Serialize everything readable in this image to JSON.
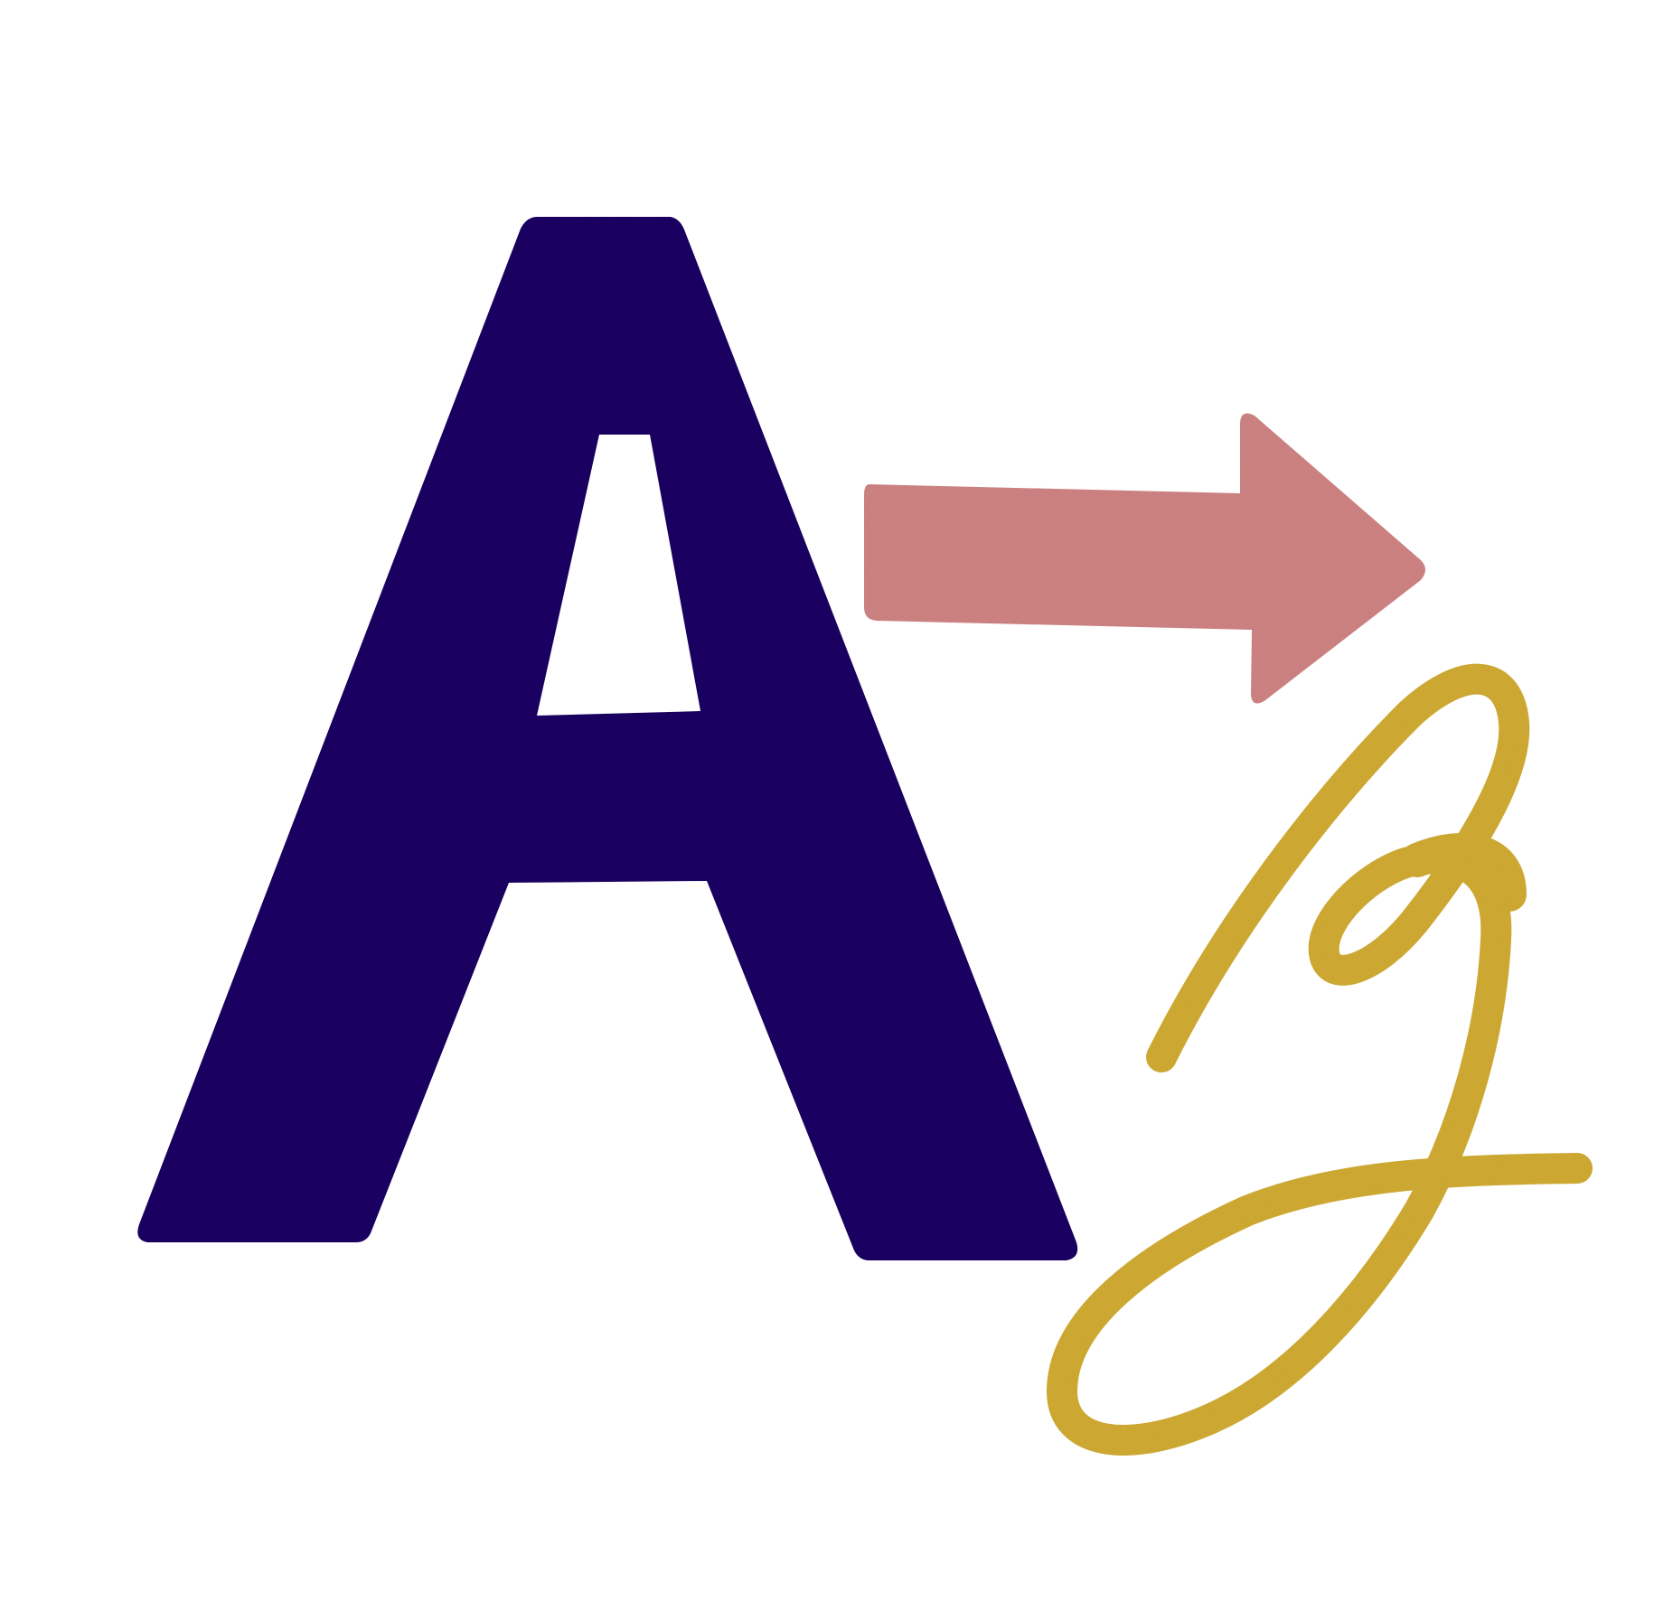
{
  "illustration": {
    "letter_block": "A",
    "letter_script": "g",
    "arrow_icon": "right-arrow-icon",
    "colors": {
      "background": "#ffffff",
      "letter_block": "#1a0062",
      "letter_block_shade": "#120048",
      "arrow": "#cf8383",
      "arrow_shade": "#b06464",
      "letter_script": "#d0ab33",
      "letter_script_shade": "#a98a1f"
    }
  }
}
